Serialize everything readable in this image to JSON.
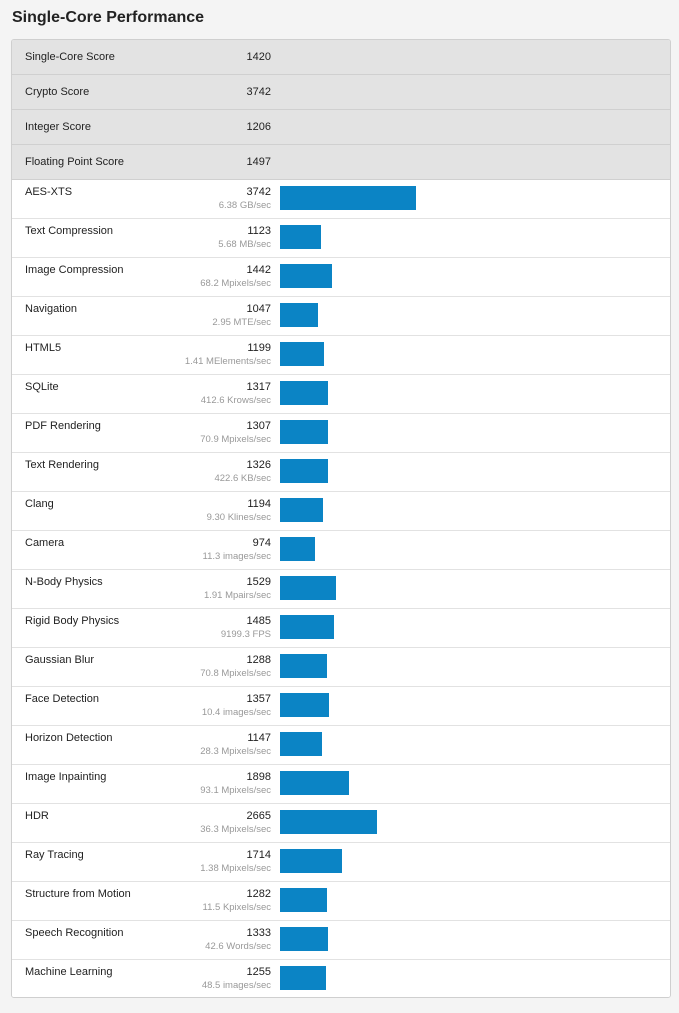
{
  "page": {
    "title": "Single-Core Performance"
  },
  "summary": [
    {
      "label": "Single-Core Score",
      "score": "1420"
    },
    {
      "label": "Crypto Score",
      "score": "3742"
    },
    {
      "label": "Integer Score",
      "score": "1206"
    },
    {
      "label": "Floating Point Score",
      "score": "1497"
    }
  ],
  "bar_color": "#0b84c5",
  "bar_full_scale_score": 3742,
  "benchmarks": [
    {
      "name": "AES-XTS",
      "score": "3742",
      "desc": "6.38 GB/sec",
      "value": 3742
    },
    {
      "name": "Text Compression",
      "score": "1123",
      "desc": "5.68 MB/sec",
      "value": 1123
    },
    {
      "name": "Image Compression",
      "score": "1442",
      "desc": "68.2 Mpixels/sec",
      "value": 1442
    },
    {
      "name": "Navigation",
      "score": "1047",
      "desc": "2.95 MTE/sec",
      "value": 1047
    },
    {
      "name": "HTML5",
      "score": "1199",
      "desc": "1.41 MElements/sec",
      "value": 1199
    },
    {
      "name": "SQLite",
      "score": "1317",
      "desc": "412.6 Krows/sec",
      "value": 1317
    },
    {
      "name": "PDF Rendering",
      "score": "1307",
      "desc": "70.9 Mpixels/sec",
      "value": 1307
    },
    {
      "name": "Text Rendering",
      "score": "1326",
      "desc": "422.6 KB/sec",
      "value": 1326
    },
    {
      "name": "Clang",
      "score": "1194",
      "desc": "9.30 Klines/sec",
      "value": 1194
    },
    {
      "name": "Camera",
      "score": "974",
      "desc": "11.3 images/sec",
      "value": 974
    },
    {
      "name": "N-Body Physics",
      "score": "1529",
      "desc": "1.91 Mpairs/sec",
      "value": 1529
    },
    {
      "name": "Rigid Body Physics",
      "score": "1485",
      "desc": "9199.3 FPS",
      "value": 1485
    },
    {
      "name": "Gaussian Blur",
      "score": "1288",
      "desc": "70.8 Mpixels/sec",
      "value": 1288
    },
    {
      "name": "Face Detection",
      "score": "1357",
      "desc": "10.4 images/sec",
      "value": 1357
    },
    {
      "name": "Horizon Detection",
      "score": "1147",
      "desc": "28.3 Mpixels/sec",
      "value": 1147
    },
    {
      "name": "Image Inpainting",
      "score": "1898",
      "desc": "93.1 Mpixels/sec",
      "value": 1898
    },
    {
      "name": "HDR",
      "score": "2665",
      "desc": "36.3 Mpixels/sec",
      "value": 2665
    },
    {
      "name": "Ray Tracing",
      "score": "1714",
      "desc": "1.38 Mpixels/sec",
      "value": 1714
    },
    {
      "name": "Structure from Motion",
      "score": "1282",
      "desc": "11.5 Kpixels/sec",
      "value": 1282
    },
    {
      "name": "Speech Recognition",
      "score": "1333",
      "desc": "42.6 Words/sec",
      "value": 1333
    },
    {
      "name": "Machine Learning",
      "score": "1255",
      "desc": "48.5 images/sec",
      "value": 1255
    }
  ]
}
